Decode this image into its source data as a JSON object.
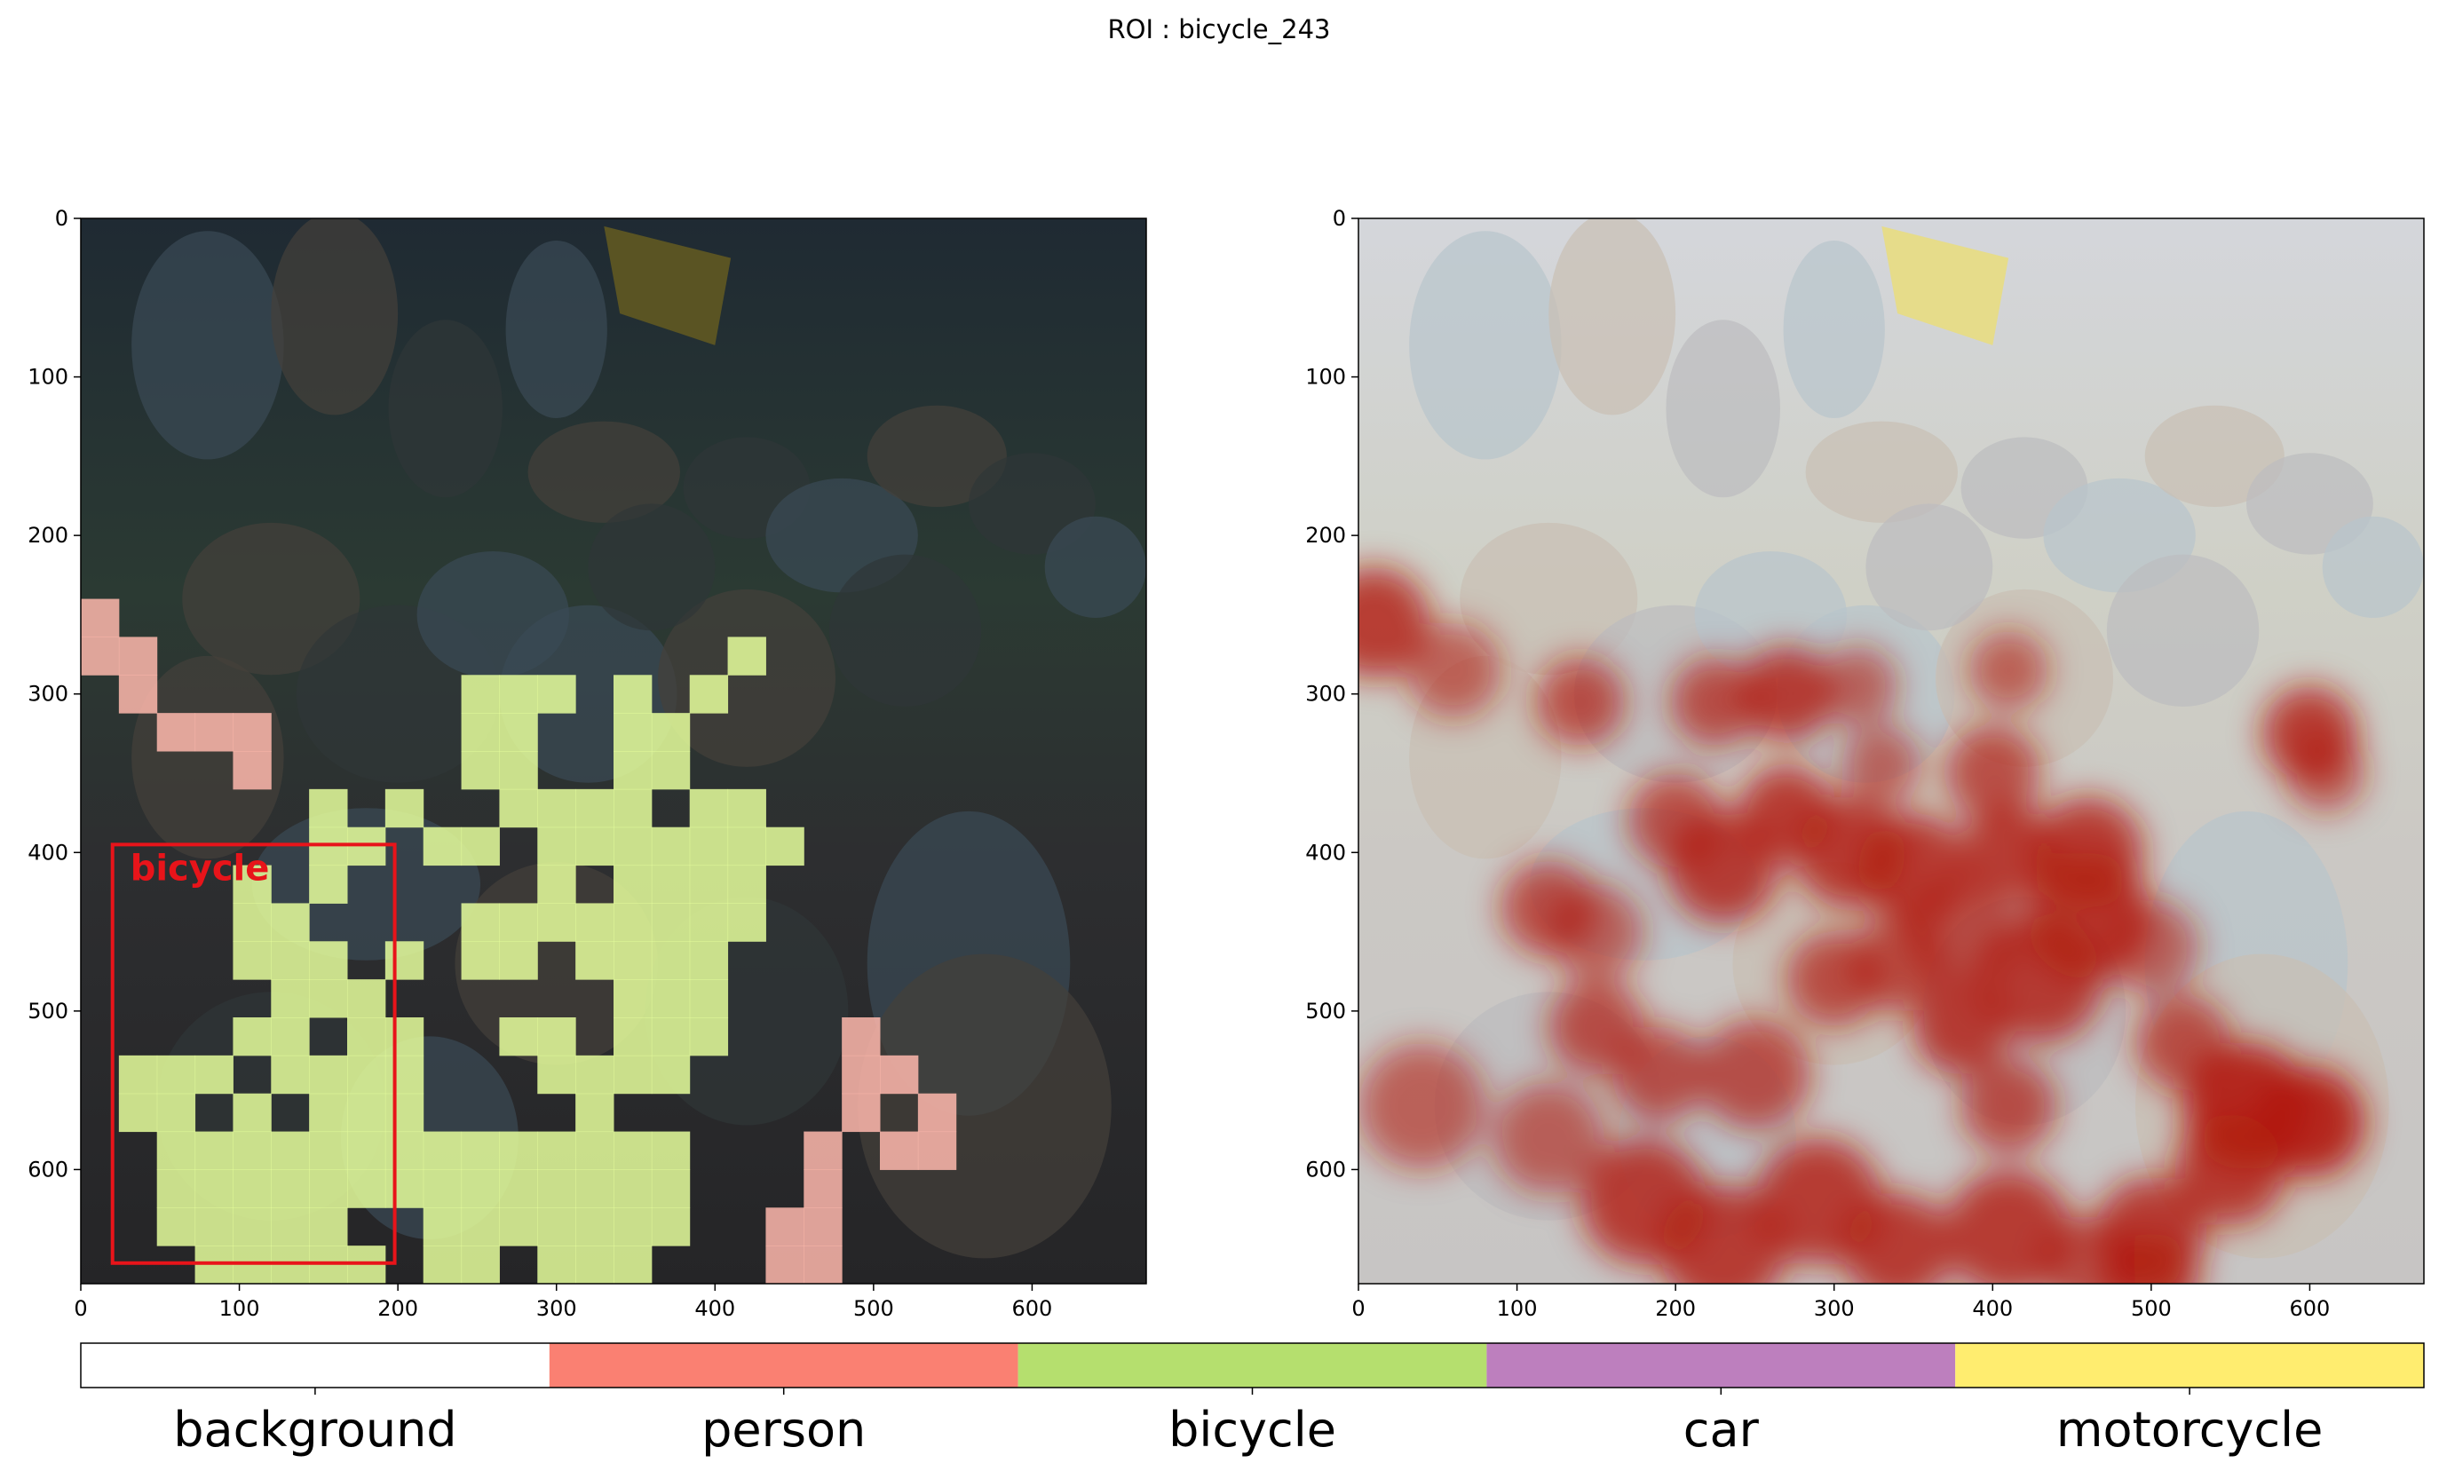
{
  "title": "ROI : bicycle_243",
  "colors": {
    "background": "#ffffff",
    "person": "#fa8072",
    "bicycle": "#b5df6e",
    "car": "#bd7fbe",
    "motorcycle": "#ffed6f",
    "roi_box": "#e8141a",
    "heat": "#b11a10"
  },
  "chart_data": [
    {
      "type": "heatmap",
      "description_ref": "segmentation-overlay",
      "x_ticks": [
        "0",
        "100",
        "200",
        "300",
        "400",
        "500",
        "600"
      ],
      "y_ticks": [
        "0",
        "100",
        "200",
        "300",
        "400",
        "500",
        "600"
      ],
      "xlim": [
        0,
        672
      ],
      "ylim": [
        672,
        0
      ],
      "cell_size": 24,
      "roi": {
        "label": "bicycle",
        "x0": 20,
        "y0": 395,
        "x1": 198,
        "y1": 659
      },
      "person_cells": [
        [
          0,
          10
        ],
        [
          0,
          11
        ],
        [
          1,
          11
        ],
        [
          1,
          12
        ],
        [
          2,
          13
        ],
        [
          3,
          13
        ],
        [
          4,
          13
        ],
        [
          4,
          14
        ],
        [
          20,
          21
        ],
        [
          21,
          22
        ],
        [
          20,
          22
        ],
        [
          22,
          23
        ],
        [
          22,
          24
        ],
        [
          20,
          23
        ],
        [
          21,
          24
        ],
        [
          19,
          24
        ],
        [
          18,
          26
        ],
        [
          19,
          26
        ],
        [
          19,
          25
        ],
        [
          18,
          27
        ],
        [
          19,
          27
        ]
      ],
      "bicycle_cells": [
        [
          17,
          11
        ],
        [
          16,
          12
        ],
        [
          10,
          12
        ],
        [
          11,
          12
        ],
        [
          12,
          12
        ],
        [
          14,
          12
        ],
        [
          10,
          13
        ],
        [
          11,
          13
        ],
        [
          14,
          13
        ],
        [
          10,
          14
        ],
        [
          11,
          14
        ],
        [
          15,
          13
        ],
        [
          14,
          14
        ],
        [
          15,
          14
        ],
        [
          6,
          15
        ],
        [
          8,
          15
        ],
        [
          11,
          15
        ],
        [
          12,
          15
        ],
        [
          13,
          15
        ],
        [
          14,
          15
        ],
        [
          16,
          15
        ],
        [
          17,
          15
        ],
        [
          6,
          16
        ],
        [
          7,
          16
        ],
        [
          9,
          16
        ],
        [
          10,
          16
        ],
        [
          12,
          16
        ],
        [
          13,
          16
        ],
        [
          14,
          16
        ],
        [
          15,
          16
        ],
        [
          16,
          16
        ],
        [
          17,
          16
        ],
        [
          18,
          16
        ],
        [
          4,
          17
        ],
        [
          6,
          17
        ],
        [
          12,
          17
        ],
        [
          14,
          17
        ],
        [
          15,
          17
        ],
        [
          16,
          17
        ],
        [
          17,
          17
        ],
        [
          4,
          18
        ],
        [
          5,
          18
        ],
        [
          10,
          18
        ],
        [
          11,
          18
        ],
        [
          12,
          18
        ],
        [
          13,
          18
        ],
        [
          14,
          18
        ],
        [
          15,
          18
        ],
        [
          16,
          18
        ],
        [
          17,
          18
        ],
        [
          4,
          19
        ],
        [
          5,
          19
        ],
        [
          6,
          19
        ],
        [
          8,
          19
        ],
        [
          10,
          19
        ],
        [
          11,
          19
        ],
        [
          13,
          19
        ],
        [
          14,
          19
        ],
        [
          15,
          19
        ],
        [
          16,
          19
        ],
        [
          5,
          20
        ],
        [
          6,
          20
        ],
        [
          7,
          20
        ],
        [
          14,
          20
        ],
        [
          15,
          20
        ],
        [
          16,
          20
        ],
        [
          4,
          21
        ],
        [
          5,
          21
        ],
        [
          7,
          21
        ],
        [
          8,
          21
        ],
        [
          11,
          21
        ],
        [
          12,
          21
        ],
        [
          14,
          21
        ],
        [
          15,
          21
        ],
        [
          16,
          21
        ],
        [
          1,
          22
        ],
        [
          2,
          22
        ],
        [
          3,
          22
        ],
        [
          5,
          22
        ],
        [
          6,
          22
        ],
        [
          7,
          22
        ],
        [
          8,
          22
        ],
        [
          12,
          22
        ],
        [
          13,
          22
        ],
        [
          14,
          22
        ],
        [
          15,
          22
        ],
        [
          1,
          23
        ],
        [
          2,
          23
        ],
        [
          4,
          23
        ],
        [
          6,
          23
        ],
        [
          7,
          23
        ],
        [
          8,
          23
        ],
        [
          13,
          23
        ],
        [
          2,
          24
        ],
        [
          3,
          24
        ],
        [
          4,
          24
        ],
        [
          5,
          24
        ],
        [
          6,
          24
        ],
        [
          7,
          24
        ],
        [
          8,
          24
        ],
        [
          9,
          24
        ],
        [
          10,
          24
        ],
        [
          11,
          24
        ],
        [
          12,
          24
        ],
        [
          13,
          24
        ],
        [
          14,
          24
        ],
        [
          15,
          24
        ],
        [
          2,
          25
        ],
        [
          3,
          25
        ],
        [
          4,
          25
        ],
        [
          5,
          25
        ],
        [
          6,
          25
        ],
        [
          7,
          25
        ],
        [
          8,
          25
        ],
        [
          9,
          25
        ],
        [
          10,
          25
        ],
        [
          11,
          25
        ],
        [
          12,
          25
        ],
        [
          13,
          25
        ],
        [
          14,
          25
        ],
        [
          15,
          25
        ],
        [
          2,
          26
        ],
        [
          3,
          26
        ],
        [
          4,
          26
        ],
        [
          5,
          26
        ],
        [
          6,
          26
        ],
        [
          9,
          26
        ],
        [
          10,
          26
        ],
        [
          11,
          26
        ],
        [
          12,
          26
        ],
        [
          13,
          26
        ],
        [
          14,
          26
        ],
        [
          15,
          26
        ],
        [
          3,
          27
        ],
        [
          4,
          27
        ],
        [
          5,
          27
        ],
        [
          6,
          27
        ],
        [
          7,
          27
        ],
        [
          9,
          27
        ],
        [
          10,
          27
        ],
        [
          12,
          27
        ],
        [
          13,
          27
        ],
        [
          14,
          27
        ]
      ]
    },
    {
      "type": "heatmap",
      "description_ref": "attention-overlay",
      "x_ticks": [
        "0",
        "100",
        "200",
        "300",
        "400",
        "500",
        "600"
      ],
      "y_ticks": [
        "0",
        "100",
        "200",
        "300",
        "400",
        "500",
        "600"
      ],
      "xlim": [
        0,
        672
      ],
      "ylim": [
        672,
        0
      ],
      "hotspots": [
        [
          10,
          255,
          35,
          0.8
        ],
        [
          60,
          285,
          30,
          0.6
        ],
        [
          140,
          305,
          28,
          0.7
        ],
        [
          225,
          305,
          28,
          0.7
        ],
        [
          270,
          300,
          30,
          0.8
        ],
        [
          315,
          295,
          25,
          0.6
        ],
        [
          410,
          285,
          25,
          0.6
        ],
        [
          600,
          325,
          30,
          0.8
        ],
        [
          610,
          350,
          25,
          0.6
        ],
        [
          330,
          345,
          25,
          0.6
        ],
        [
          400,
          350,
          30,
          0.7
        ],
        [
          200,
          380,
          30,
          0.7
        ],
        [
          230,
          410,
          35,
          0.8
        ],
        [
          270,
          375,
          30,
          0.8
        ],
        [
          310,
          400,
          35,
          0.8
        ],
        [
          350,
          410,
          35,
          0.8
        ],
        [
          410,
          400,
          30,
          0.8
        ],
        [
          460,
          400,
          35,
          0.8
        ],
        [
          460,
          440,
          40,
          0.8
        ],
        [
          120,
          435,
          30,
          0.7
        ],
        [
          150,
          450,
          30,
          0.6
        ],
        [
          300,
          480,
          30,
          0.7
        ],
        [
          340,
          470,
          30,
          0.7
        ],
        [
          380,
          450,
          35,
          0.7
        ],
        [
          430,
          480,
          40,
          0.8
        ],
        [
          500,
          460,
          30,
          0.6
        ],
        [
          150,
          510,
          30,
          0.7
        ],
        [
          190,
          540,
          30,
          0.7
        ],
        [
          250,
          540,
          35,
          0.7
        ],
        [
          380,
          510,
          30,
          0.8
        ],
        [
          410,
          560,
          30,
          0.7
        ],
        [
          520,
          520,
          30,
          0.7
        ],
        [
          560,
          560,
          40,
          0.9
        ],
        [
          600,
          570,
          35,
          0.9
        ],
        [
          550,
          600,
          35,
          0.8
        ],
        [
          40,
          560,
          40,
          0.6
        ],
        [
          120,
          580,
          35,
          0.6
        ],
        [
          180,
          620,
          40,
          0.8
        ],
        [
          230,
          650,
          40,
          0.8
        ],
        [
          290,
          620,
          40,
          0.8
        ],
        [
          340,
          650,
          35,
          0.8
        ],
        [
          410,
          640,
          40,
          0.8
        ],
        [
          460,
          660,
          30,
          0.7
        ],
        [
          500,
          640,
          35,
          0.8
        ],
        [
          500,
          670,
          30,
          0.8
        ]
      ]
    }
  ],
  "legend": {
    "items": [
      {
        "label": "background",
        "color": "#ffffff"
      },
      {
        "label": "person",
        "color": "#fa8072"
      },
      {
        "label": "bicycle",
        "color": "#b5df6e"
      },
      {
        "label": "car",
        "color": "#bd7fbe"
      },
      {
        "label": "motorcycle",
        "color": "#ffed6f"
      }
    ]
  }
}
